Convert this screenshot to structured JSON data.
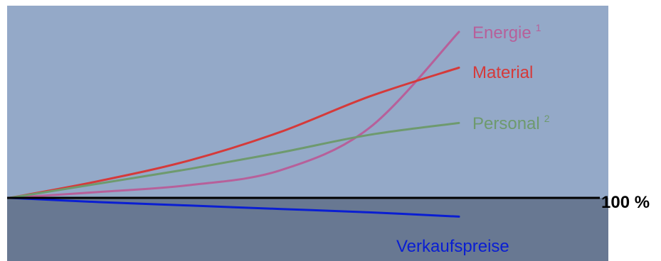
{
  "chart_data": {
    "type": "line",
    "title": "",
    "xlabel": "",
    "ylabel": "",
    "baseline_label": "100 %",
    "colors": {
      "above_bg": "#94a9c8",
      "below_bg": "#687892",
      "baseline": "#000000"
    },
    "series": [
      {
        "name": "Energie",
        "footnote": "1",
        "color": "#b7609a",
        "points": [
          [
            0,
            0
          ],
          [
            0.2,
            0.07
          ],
          [
            0.4,
            0.15
          ],
          [
            0.6,
            0.32
          ],
          [
            0.8,
            0.82
          ],
          [
            1,
            1.95
          ]
        ]
      },
      {
        "name": "Material",
        "footnote": "",
        "color": "#d53a3a",
        "points": [
          [
            0,
            0
          ],
          [
            0.2,
            0.2
          ],
          [
            0.4,
            0.44
          ],
          [
            0.6,
            0.77
          ],
          [
            0.8,
            1.19
          ],
          [
            1,
            1.53
          ]
        ]
      },
      {
        "name": "Personal",
        "footnote": "2",
        "color": "#6e9a6e",
        "points": [
          [
            0,
            0
          ],
          [
            0.2,
            0.17
          ],
          [
            0.4,
            0.34
          ],
          [
            0.6,
            0.53
          ],
          [
            0.8,
            0.74
          ],
          [
            1,
            0.88
          ]
        ]
      },
      {
        "name": "Verkaufspreise",
        "footnote": "",
        "color": "#0a1ed2",
        "points": [
          [
            0,
            0
          ],
          [
            0.2,
            -0.05
          ],
          [
            0.4,
            -0.09
          ],
          [
            0.6,
            -0.13
          ],
          [
            0.8,
            -0.17
          ],
          [
            1,
            -0.22
          ]
        ]
      }
    ]
  }
}
